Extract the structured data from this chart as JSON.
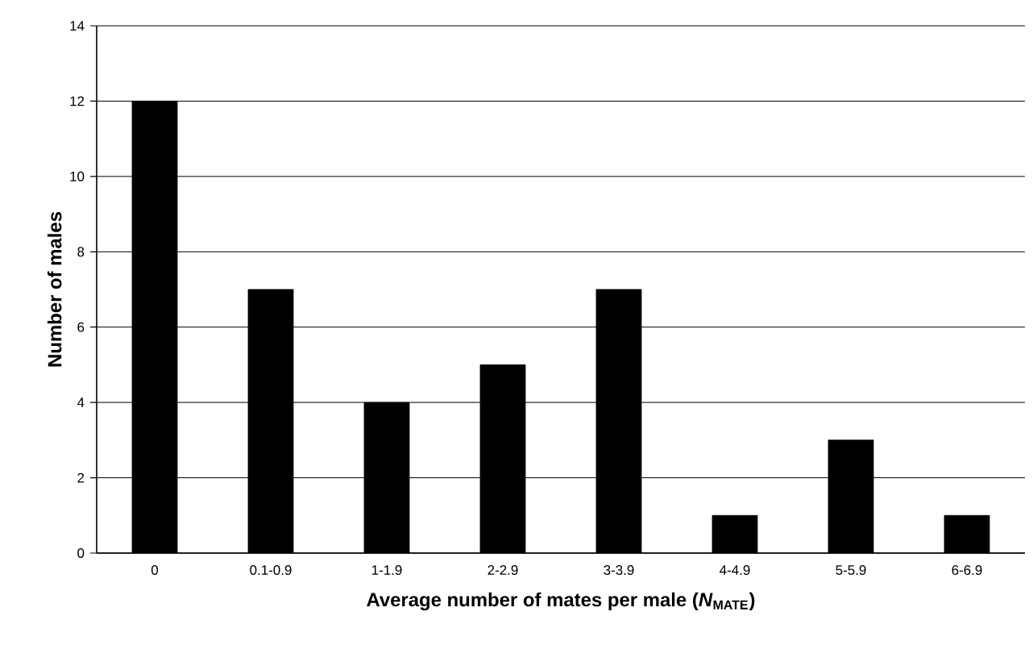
{
  "chart_data": {
    "type": "bar",
    "xlabel": "Average number of mates per male (*N*$_{MATE}$)",
    "ylabel": "Number of males",
    "categories": [
      "0",
      "0.1-0.9",
      "1-1.9",
      "2-2.9",
      "3-3.9",
      "4-4.9",
      "5-5.9",
      "6-6.9"
    ],
    "values": [
      12,
      7,
      4,
      5,
      7,
      1,
      3,
      1
    ],
    "color": "#000000",
    "ylim": [
      0,
      14
    ],
    "yticks": [
      0,
      2,
      4,
      6,
      8,
      10,
      12,
      14
    ],
    "grid": "y"
  }
}
